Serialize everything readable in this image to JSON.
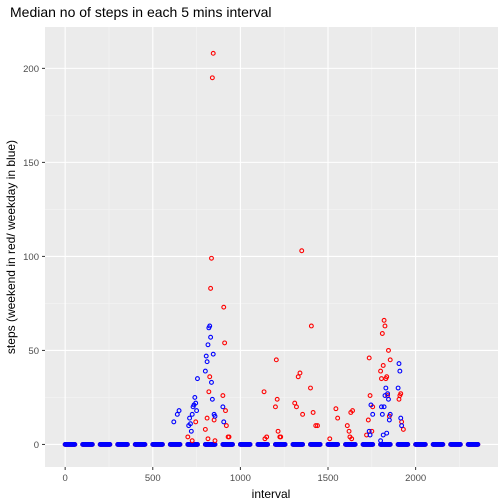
{
  "chart_data": {
    "type": "scatter",
    "title": "Median no of steps in each 5 mins interval",
    "xlabel": "interval",
    "ylabel": "steps (weekend in red/ weekday in blue)",
    "xlim": [
      -115,
      2470
    ],
    "ylim": [
      -12,
      222
    ],
    "xticks": [
      0,
      500,
      1000,
      1500,
      2000
    ],
    "yticks": [
      0,
      50,
      100,
      150,
      200
    ],
    "grid": true,
    "legend": "none",
    "zero_steps": {
      "start": 0,
      "end": 2355
    },
    "series": [
      {
        "color": "#ff0000",
        "points": [
          [
            700,
            4
          ],
          [
            725,
            2
          ],
          [
            745,
            12
          ],
          [
            800,
            8
          ],
          [
            810,
            14
          ],
          [
            815,
            3
          ],
          [
            820,
            28
          ],
          [
            825,
            36
          ],
          [
            830,
            83
          ],
          [
            835,
            99
          ],
          [
            840,
            195
          ],
          [
            845,
            208
          ],
          [
            850,
            13
          ],
          [
            855,
            2
          ],
          [
            900,
            26
          ],
          [
            905,
            73
          ],
          [
            910,
            54
          ],
          [
            915,
            18
          ],
          [
            920,
            10
          ],
          [
            930,
            4
          ],
          [
            935,
            4
          ],
          [
            1135,
            28
          ],
          [
            1140,
            3
          ],
          [
            1150,
            4
          ],
          [
            1200,
            20
          ],
          [
            1205,
            45
          ],
          [
            1210,
            24
          ],
          [
            1215,
            7
          ],
          [
            1225,
            4
          ],
          [
            1230,
            4
          ],
          [
            1310,
            22
          ],
          [
            1320,
            20
          ],
          [
            1330,
            36
          ],
          [
            1340,
            38
          ],
          [
            1350,
            103
          ],
          [
            1355,
            16
          ],
          [
            1400,
            30
          ],
          [
            1405,
            63
          ],
          [
            1415,
            17
          ],
          [
            1430,
            10
          ],
          [
            1440,
            10
          ],
          [
            1510,
            3
          ],
          [
            1545,
            19
          ],
          [
            1555,
            14
          ],
          [
            1610,
            10
          ],
          [
            1620,
            7
          ],
          [
            1625,
            4
          ],
          [
            1630,
            17
          ],
          [
            1635,
            3
          ],
          [
            1640,
            18
          ],
          [
            1720,
            5
          ],
          [
            1730,
            13
          ],
          [
            1735,
            46
          ],
          [
            1740,
            26
          ],
          [
            1750,
            7
          ],
          [
            1755,
            20
          ],
          [
            1800,
            39
          ],
          [
            1805,
            35
          ],
          [
            1810,
            59
          ],
          [
            1815,
            42
          ],
          [
            1820,
            66
          ],
          [
            1825,
            63
          ],
          [
            1830,
            35
          ],
          [
            1835,
            36
          ],
          [
            1840,
            26
          ],
          [
            1845,
            50
          ],
          [
            1850,
            15
          ],
          [
            1855,
            45
          ],
          [
            1905,
            24
          ],
          [
            1910,
            26
          ],
          [
            1915,
            27
          ],
          [
            1920,
            12
          ],
          [
            1930,
            8
          ]
        ]
      },
      {
        "color": "#0000ff",
        "points": [
          [
            620,
            12
          ],
          [
            640,
            16
          ],
          [
            650,
            18
          ],
          [
            705,
            10
          ],
          [
            710,
            14
          ],
          [
            715,
            11
          ],
          [
            720,
            7
          ],
          [
            725,
            16
          ],
          [
            730,
            20
          ],
          [
            735,
            21
          ],
          [
            740,
            25
          ],
          [
            745,
            22
          ],
          [
            750,
            18
          ],
          [
            755,
            35
          ],
          [
            800,
            39
          ],
          [
            805,
            47
          ],
          [
            810,
            44
          ],
          [
            815,
            53
          ],
          [
            820,
            62
          ],
          [
            825,
            63
          ],
          [
            830,
            57
          ],
          [
            835,
            33
          ],
          [
            840,
            24
          ],
          [
            845,
            48
          ],
          [
            850,
            16
          ],
          [
            855,
            15
          ],
          [
            900,
            20
          ],
          [
            905,
            12
          ],
          [
            1735,
            7
          ],
          [
            1740,
            5
          ],
          [
            1745,
            21
          ],
          [
            1755,
            16
          ],
          [
            1800,
            2
          ],
          [
            1805,
            20
          ],
          [
            1810,
            16
          ],
          [
            1815,
            5
          ],
          [
            1820,
            20
          ],
          [
            1825,
            26
          ],
          [
            1830,
            30
          ],
          [
            1835,
            6
          ],
          [
            1840,
            27
          ],
          [
            1845,
            24
          ],
          [
            1850,
            13
          ],
          [
            1855,
            16
          ],
          [
            1900,
            30
          ],
          [
            1905,
            43
          ],
          [
            1910,
            39
          ],
          [
            1915,
            14
          ],
          [
            1920,
            10
          ]
        ]
      }
    ]
  }
}
